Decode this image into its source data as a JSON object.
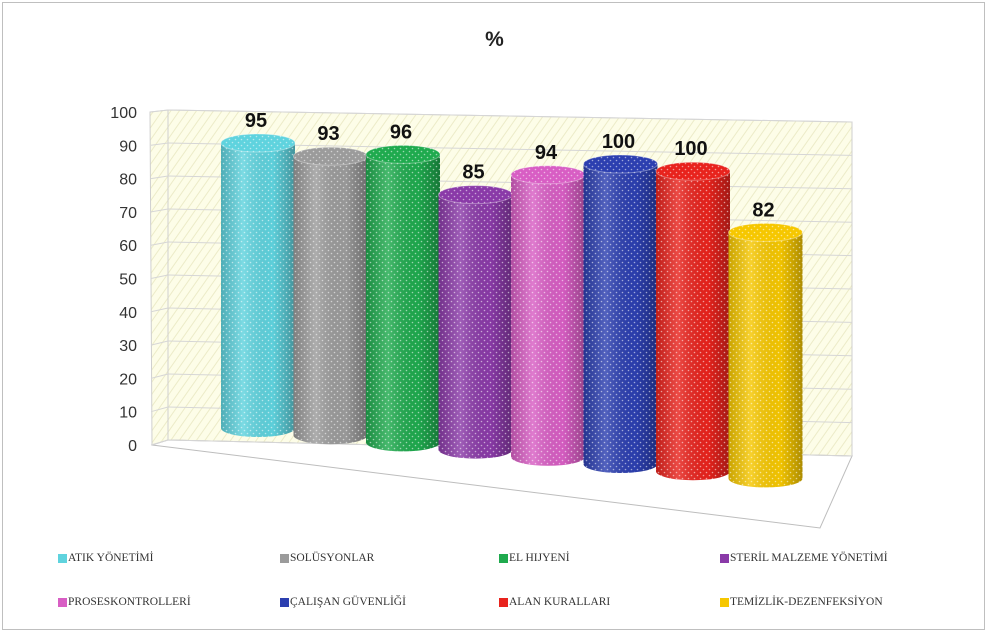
{
  "chart_data": {
    "type": "bar",
    "style": "3d-cylinder",
    "title": "%",
    "categories": [
      "ATIK YÖNETİMİ",
      "SOLÜSYONLAR",
      "EL HIJYENİ",
      "STERİL MALZEME YÖNETİMİ",
      "PROSESKONTROLLERİ",
      "ÇALIŞAN GÜVENLİĞİ",
      "ALAN KURALLARI",
      "TEMİZLİK-DEZENFEKSİYON"
    ],
    "values": [
      95,
      93,
      96,
      85,
      94,
      100,
      100,
      82
    ],
    "colors": [
      "#5fd3de",
      "#9b9b9b",
      "#1faa4e",
      "#8a3aa8",
      "#d85ec4",
      "#2c3fb0",
      "#e8231d",
      "#f6c700"
    ],
    "ylim": [
      0,
      100
    ],
    "yticks": [
      0,
      10,
      20,
      30,
      40,
      50,
      60,
      70,
      80,
      90,
      100
    ],
    "grid": true,
    "legend_position": "bottom"
  }
}
